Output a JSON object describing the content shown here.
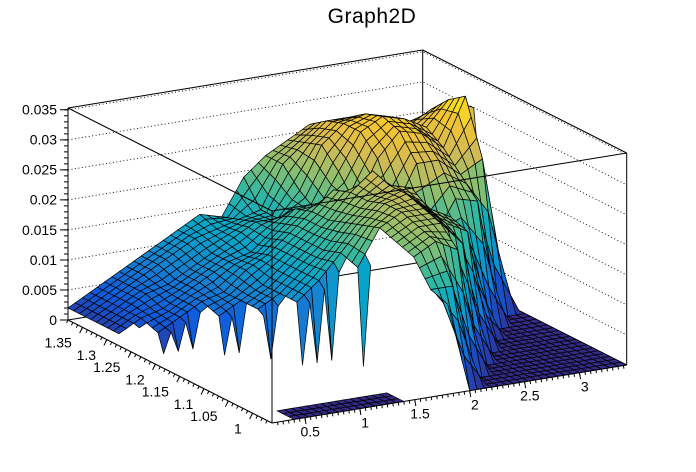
{
  "title": "Graph2D",
  "chart_data": {
    "type": "surface",
    "title": "Graph2D",
    "projection": "3d-perspective-box, ROOT SURF1 style, black mesh, dotted z-gridlines on back walls",
    "x_axis": {
      "min": 0.2,
      "max": 3.43,
      "major_tick_values": [
        0.5,
        1,
        1.5,
        2,
        2.5,
        3
      ],
      "major_tick_labels": [
        "0.5",
        "1",
        "1.5",
        "2",
        "2.5",
        "3"
      ],
      "minor_tick_step": 0.05
    },
    "y_axis": {
      "min": 0.96,
      "max": 1.38,
      "major_tick_values": [
        1,
        1.05,
        1.1,
        1.15,
        1.2,
        1.25,
        1.3,
        1.35
      ],
      "major_tick_labels": [
        "1",
        "1.05",
        "1.1",
        "1.15",
        "1.2",
        "1.25",
        "1.3",
        "1.35"
      ],
      "minor_tick_step": 0.01
    },
    "z_axis": {
      "min": 0,
      "max": 0.0353,
      "major_tick_values": [
        0,
        0.005,
        0.01,
        0.015,
        0.02,
        0.025,
        0.03,
        0.035
      ],
      "major_tick_labels": [
        "0",
        "0.005",
        "0.01",
        "0.015",
        "0.02",
        "0.025",
        "0.03",
        "0.035"
      ],
      "minor_tick_step": 0.001,
      "gridlines": "dotted, at every major tick, on both back walls"
    },
    "palette": [
      "#352a87",
      "#0f5bdc",
      "#1681d2",
      "#08a5c9",
      "#33b8a1",
      "#8abf70",
      "#d2ba55",
      "#f5c62f",
      "#f7f21e"
    ],
    "palette_note": "z=0 dark blue floor, mid teal/green, maxima yellow",
    "surface": {
      "z_scale": 0.001,
      "z_max_display": 0.0345,
      "x": [
        0.2,
        0.4,
        0.6,
        0.8,
        1.0,
        1.2,
        1.4,
        1.6,
        1.8,
        2.0,
        2.2,
        2.4,
        2.6,
        2.8,
        3.0,
        3.2,
        3.43
      ],
      "y": [
        0.96,
        0.995,
        1.03,
        1.065,
        1.1,
        1.135,
        1.17,
        1.205,
        1.24,
        1.275,
        1.31,
        1.345,
        1.38
      ],
      "z_milli": [
        [
          null,
          0,
          0,
          0,
          0,
          0,
          0,
          null,
          15,
          0,
          0,
          0,
          0,
          0,
          0,
          0,
          0
        ],
        [
          null,
          0,
          0,
          0,
          0,
          0,
          0,
          null,
          16,
          16,
          0,
          0,
          0,
          0,
          0,
          0,
          0
        ],
        [
          null,
          null,
          null,
          null,
          null,
          null,
          null,
          null,
          20,
          22,
          20,
          0,
          0,
          0,
          0,
          0,
          0
        ],
        [
          null,
          null,
          null,
          null,
          null,
          null,
          null,
          null,
          21,
          23,
          23,
          19,
          0,
          0,
          0,
          0,
          0
        ],
        [
          null,
          null,
          null,
          null,
          null,
          null,
          null,
          16,
          22,
          24,
          24,
          21,
          19,
          0,
          0,
          0,
          0
        ],
        [
          null,
          null,
          null,
          null,
          null,
          10,
          13,
          17,
          21,
          24,
          25,
          22,
          20,
          13,
          0,
          0,
          0
        ],
        [
          null,
          null,
          null,
          null,
          8,
          10,
          13,
          16,
          20,
          23,
          25,
          24,
          15,
          21,
          20,
          0,
          0
        ],
        [
          null,
          null,
          null,
          6,
          8,
          10,
          13,
          16,
          19,
          23,
          26,
          19,
          26,
          26,
          23,
          25,
          0
        ],
        [
          null,
          3,
          5,
          7,
          8,
          11,
          13,
          16,
          19,
          22,
          19,
          26,
          30,
          29,
          26,
          34,
          0
        ],
        [
          2,
          4,
          5,
          7,
          9,
          11,
          12,
          15,
          18,
          17,
          23,
          29,
          31,
          30,
          28,
          32,
          30
        ],
        [
          2,
          4,
          6,
          7,
          9,
          11,
          13,
          15,
          15,
          19,
          26,
          29,
          30,
          29,
          27,
          29,
          28
        ],
        [
          2,
          4,
          6,
          8,
          10,
          12,
          13,
          14,
          15,
          22,
          25,
          28,
          28,
          27,
          26,
          25,
          24
        ],
        [
          2,
          4,
          6,
          8,
          10,
          12,
          14,
          13,
          19,
          22,
          24,
          26,
          26,
          26,
          24,
          23,
          22
        ]
      ]
    },
    "features": {
      "flat_floor": "z=0 dark-blue meshed plane right of a diagonal cliff running from (x=1.9,y=0.96) to (x=3.4,y=1.26)",
      "sharp_peak": {
        "x": 3.2,
        "y": 1.24,
        "z": 0.034
      },
      "back_hump": {
        "x": 2.6,
        "y": 1.28,
        "z": 0.031
      },
      "front_hump": {
        "x": 2.1,
        "y": 1.08,
        "z": 0.024
      },
      "crease": "dark diagonal notch between the two humps from (1.55,1.38) to (2.8,1.13)",
      "fold_teeth": {
        "x_range": [
          0.3,
          1.72
        ],
        "note": "triangulation comb spikes dropping to z=0 at the front-left edge, white gap behind them"
      }
    }
  }
}
